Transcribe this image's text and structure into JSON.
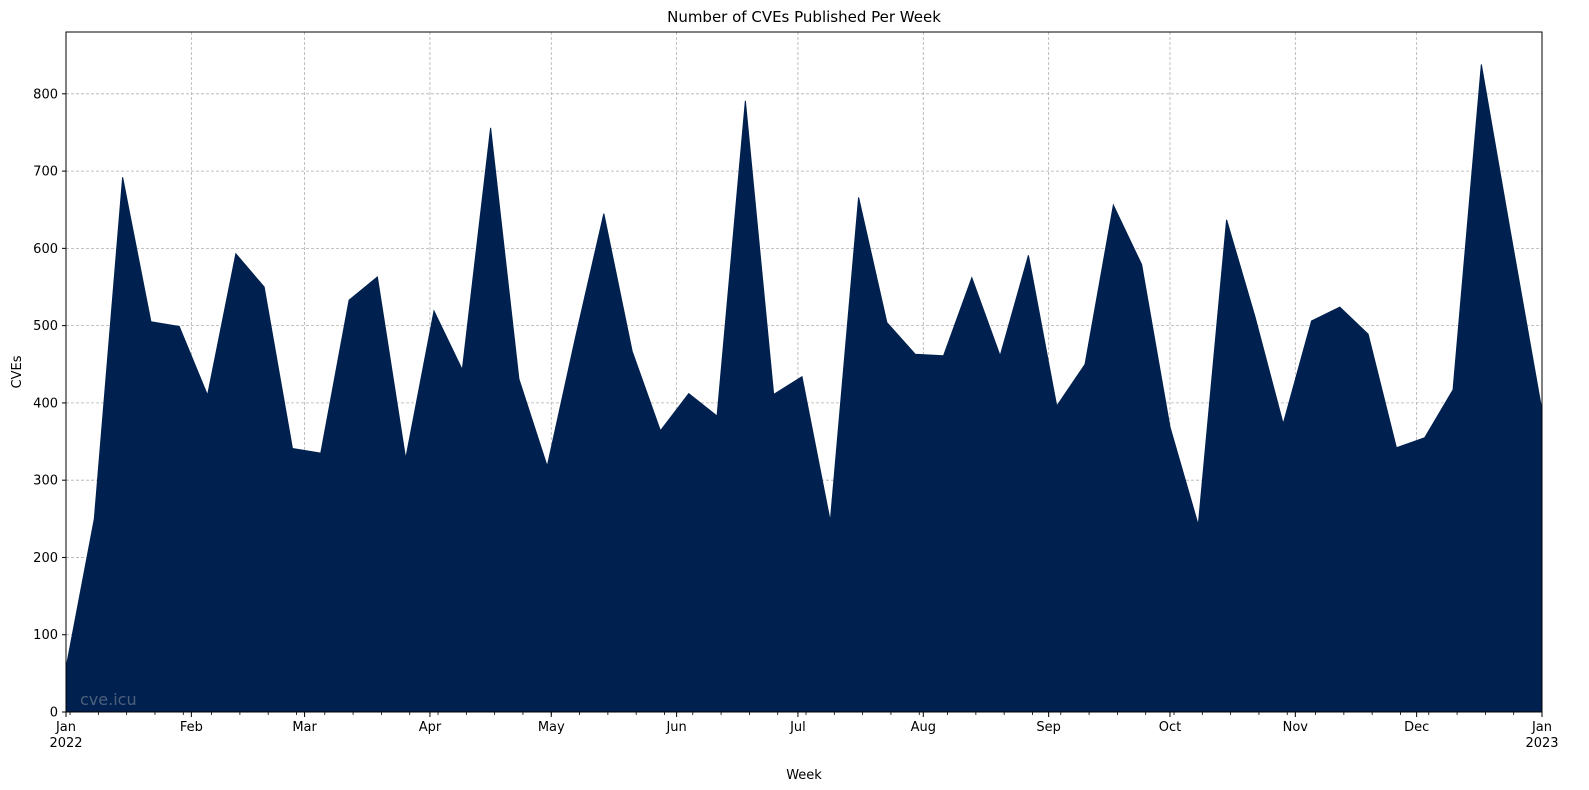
{
  "chart_data": {
    "type": "area",
    "title": "Number of CVEs Published Per Week",
    "xlabel": "Week",
    "ylabel": "CVEs",
    "ylim": [
      0,
      880
    ],
    "xlim": [
      "2022-01-01",
      "2023-01-01"
    ],
    "grid": true,
    "fill_color": "#00214f",
    "yticks": [
      0,
      100,
      200,
      300,
      400,
      500,
      600,
      700,
      800
    ],
    "xticks": [
      {
        "date": "2022-01-01",
        "label": "Jan",
        "sublabel": "2022"
      },
      {
        "date": "2022-02-01",
        "label": "Feb",
        "sublabel": ""
      },
      {
        "date": "2022-03-01",
        "label": "Mar",
        "sublabel": ""
      },
      {
        "date": "2022-04-01",
        "label": "Apr",
        "sublabel": ""
      },
      {
        "date": "2022-05-01",
        "label": "May",
        "sublabel": ""
      },
      {
        "date": "2022-06-01",
        "label": "Jun",
        "sublabel": ""
      },
      {
        "date": "2022-07-01",
        "label": "Jul",
        "sublabel": ""
      },
      {
        "date": "2022-08-01",
        "label": "Aug",
        "sublabel": ""
      },
      {
        "date": "2022-09-01",
        "label": "Sep",
        "sublabel": ""
      },
      {
        "date": "2022-10-01",
        "label": "Oct",
        "sublabel": ""
      },
      {
        "date": "2022-11-01",
        "label": "Nov",
        "sublabel": ""
      },
      {
        "date": "2022-12-01",
        "label": "Dec",
        "sublabel": ""
      },
      {
        "date": "2023-01-01",
        "label": "Jan",
        "sublabel": "2023"
      }
    ],
    "x": [
      "2022-01-02",
      "2022-01-09",
      "2022-01-16",
      "2022-01-23",
      "2022-01-30",
      "2022-02-06",
      "2022-02-13",
      "2022-02-20",
      "2022-02-27",
      "2022-03-06",
      "2022-03-13",
      "2022-03-20",
      "2022-03-27",
      "2022-04-03",
      "2022-04-10",
      "2022-04-17",
      "2022-04-24",
      "2022-05-01",
      "2022-05-08",
      "2022-05-15",
      "2022-05-22",
      "2022-05-29",
      "2022-06-05",
      "2022-06-12",
      "2022-06-19",
      "2022-06-26",
      "2022-07-03",
      "2022-07-10",
      "2022-07-17",
      "2022-07-24",
      "2022-07-31",
      "2022-08-07",
      "2022-08-14",
      "2022-08-21",
      "2022-08-28",
      "2022-09-04",
      "2022-09-11",
      "2022-09-18",
      "2022-09-25",
      "2022-10-02",
      "2022-10-09",
      "2022-10-16",
      "2022-10-23",
      "2022-10-30",
      "2022-11-06",
      "2022-11-13",
      "2022-11-20",
      "2022-11-27",
      "2022-12-04",
      "2022-12-11",
      "2022-12-18",
      "2022-12-25",
      "2023-01-01"
    ],
    "values": [
      57,
      250,
      692,
      505,
      499,
      410,
      593,
      550,
      341,
      335,
      533,
      563,
      328,
      519,
      443,
      756,
      431,
      318,
      485,
      645,
      467,
      364,
      412,
      383,
      791,
      411,
      434,
      247,
      666,
      504,
      463,
      461,
      562,
      461,
      591,
      396,
      450,
      656,
      579,
      369,
      242,
      637,
      512,
      373,
      506,
      524,
      489,
      342,
      355,
      417,
      838,
      627,
      390
    ],
    "watermark": "cve.icu"
  }
}
